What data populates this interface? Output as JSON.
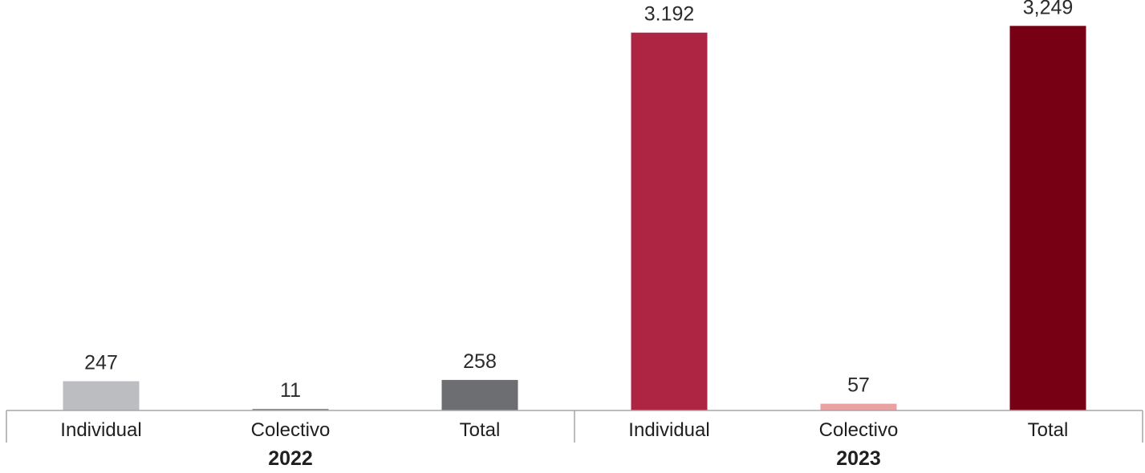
{
  "chart_data": {
    "type": "bar",
    "title": "",
    "xlabel": "",
    "ylabel": "",
    "ylim": [
      0,
      3400
    ],
    "grid": false,
    "legend": "none",
    "groups": [
      {
        "label": "2022",
        "bars": [
          {
            "category": "Individual",
            "value": 247,
            "label": "247",
            "color": "#bcbdc0"
          },
          {
            "category": "Colectivo",
            "value": 11,
            "label": "11",
            "color": "#8c8c8c"
          },
          {
            "category": "Total",
            "value": 258,
            "label": "258",
            "color": "#6d6e71"
          }
        ]
      },
      {
        "label": "2023",
        "bars": [
          {
            "category": "Individual",
            "value": 3192,
            "label": "3.192",
            "color": "#ae2543"
          },
          {
            "category": "Colectivo",
            "value": 57,
            "label": "57",
            "color": "#eaa1a3"
          },
          {
            "category": "Total",
            "value": 3249,
            "label": "3,249",
            "color": "#780015"
          }
        ]
      }
    ],
    "axis_color": "#a6a6a6"
  }
}
